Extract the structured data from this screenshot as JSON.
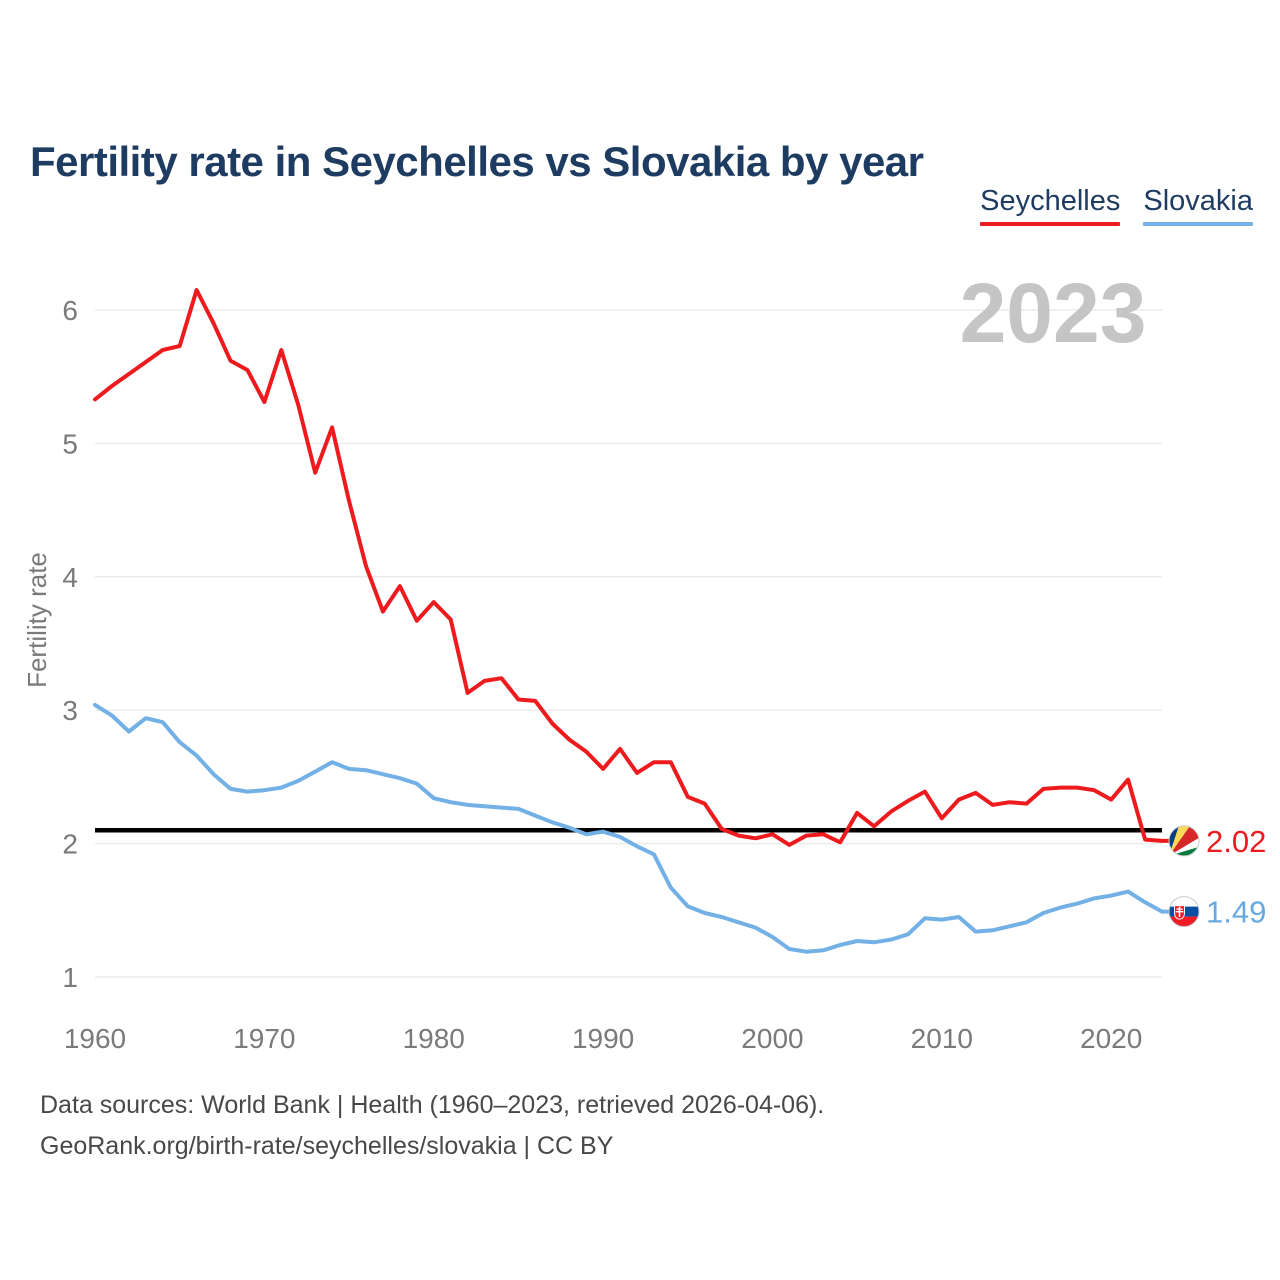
{
  "header": {
    "title": "Fertility rate in Seychelles vs Slovakia by year"
  },
  "legend": {
    "items": [
      {
        "label": "Seychelles",
        "color": "#ed1b1d"
      },
      {
        "label": "Slovakia",
        "color": "#72b0e6"
      }
    ]
  },
  "watermark": "2023",
  "end_labels": [
    {
      "series": "Seychelles",
      "value": "2.02",
      "flag_icon": "seychelles-flag",
      "color": "#ed1b1d"
    },
    {
      "series": "Slovakia",
      "value": "1.49",
      "flag_icon": "slovakia-flag",
      "color": "#68a9e2"
    }
  ],
  "footer": {
    "line1": "Data sources: World Bank | Health (1960–2023, retrieved 2026-04-06).",
    "line2": "GeoRank.org/birth-rate/seychelles/slovakia | CC BY"
  },
  "chart_data": {
    "type": "line",
    "title": "Fertility rate in Seychelles vs Slovakia by year",
    "xlabel": "",
    "ylabel": "Fertility rate",
    "xlim": [
      1960,
      2023
    ],
    "ylim": [
      1,
      6.3
    ],
    "yticks": [
      1,
      2,
      3,
      4,
      5,
      6
    ],
    "xticks": [
      1960,
      1970,
      1980,
      1990,
      2000,
      2010,
      2020
    ],
    "grid": "horizontal",
    "legend_position": "top-right",
    "reference_line": {
      "value": 2.1,
      "color": "#000000"
    },
    "x": [
      1960,
      1961,
      1962,
      1963,
      1964,
      1965,
      1966,
      1967,
      1968,
      1969,
      1970,
      1971,
      1972,
      1973,
      1974,
      1975,
      1976,
      1977,
      1978,
      1979,
      1980,
      1981,
      1982,
      1983,
      1984,
      1985,
      1986,
      1987,
      1988,
      1989,
      1990,
      1991,
      1992,
      1993,
      1994,
      1995,
      1996,
      1997,
      1998,
      1999,
      2000,
      2001,
      2002,
      2003,
      2004,
      2005,
      2006,
      2007,
      2008,
      2009,
      2010,
      2011,
      2012,
      2013,
      2014,
      2015,
      2016,
      2017,
      2018,
      2019,
      2020,
      2021,
      2022,
      2023
    ],
    "series": [
      {
        "name": "Seychelles",
        "color": "#ed1b1d",
        "values": [
          5.33,
          5.43,
          5.52,
          5.61,
          5.7,
          5.73,
          6.15,
          5.9,
          5.62,
          5.55,
          5.31,
          5.7,
          5.29,
          4.78,
          5.12,
          4.57,
          4.08,
          3.74,
          3.93,
          3.67,
          3.81,
          3.68,
          3.13,
          3.22,
          3.24,
          3.08,
          3.07,
          2.9,
          2.78,
          2.69,
          2.56,
          2.71,
          2.53,
          2.61,
          2.61,
          2.35,
          2.3,
          2.11,
          2.06,
          2.04,
          2.07,
          1.99,
          2.06,
          2.07,
          2.01,
          2.23,
          2.13,
          2.24,
          2.32,
          2.39,
          2.19,
          2.33,
          2.38,
          2.29,
          2.31,
          2.3,
          2.41,
          2.42,
          2.42,
          2.4,
          2.33,
          2.48,
          2.03,
          2.02
        ]
      },
      {
        "name": "Slovakia",
        "color": "#72b0e6",
        "values": [
          3.04,
          2.96,
          2.84,
          2.94,
          2.91,
          2.76,
          2.66,
          2.52,
          2.41,
          2.39,
          2.4,
          2.42,
          2.47,
          2.54,
          2.61,
          2.56,
          2.55,
          2.52,
          2.49,
          2.45,
          2.34,
          2.31,
          2.29,
          2.28,
          2.27,
          2.26,
          2.21,
          2.16,
          2.12,
          2.07,
          2.09,
          2.05,
          1.98,
          1.92,
          1.67,
          1.53,
          1.48,
          1.45,
          1.41,
          1.37,
          1.3,
          1.21,
          1.19,
          1.2,
          1.24,
          1.27,
          1.26,
          1.28,
          1.32,
          1.44,
          1.43,
          1.45,
          1.34,
          1.35,
          1.38,
          1.41,
          1.48,
          1.52,
          1.55,
          1.59,
          1.61,
          1.64,
          1.56,
          1.49
        ]
      }
    ]
  }
}
